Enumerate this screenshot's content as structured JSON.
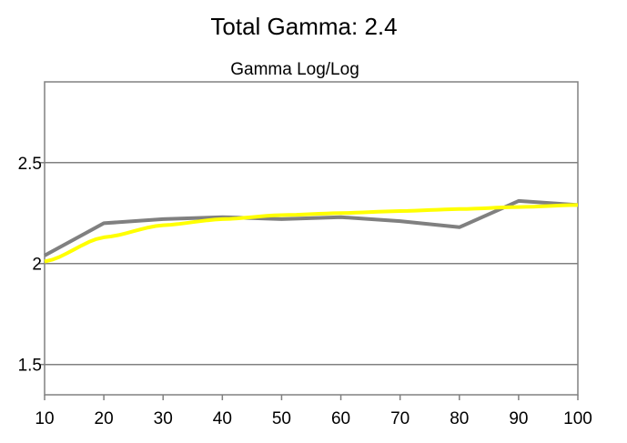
{
  "header": {
    "title": "Total Gamma: 2.4"
  },
  "chart_data": {
    "type": "line",
    "title": "Gamma Log/Log",
    "xlabel": "",
    "ylabel": "",
    "x": [
      10,
      20,
      30,
      40,
      50,
      60,
      70,
      80,
      90,
      100
    ],
    "x_ticks": [
      "10",
      "20",
      "30",
      "40",
      "50",
      "60",
      "70",
      "80",
      "90",
      "100"
    ],
    "y_ticks": [
      "1.5",
      "2",
      "2.5"
    ],
    "y_tick_values": [
      1.5,
      2,
      2.5
    ],
    "xlim": [
      10,
      100
    ],
    "ylim": [
      1.35,
      2.9
    ],
    "grid": "horizontal",
    "legend": "none",
    "series": [
      {
        "color": "#808080",
        "values": [
          2.04,
          2.2,
          2.22,
          2.23,
          2.22,
          2.23,
          2.21,
          2.18,
          2.31,
          2.29
        ]
      },
      {
        "color": "#ffff00",
        "values": [
          2.01,
          2.13,
          2.19,
          2.22,
          2.24,
          2.25,
          2.26,
          2.27,
          2.28,
          2.29
        ]
      }
    ]
  }
}
